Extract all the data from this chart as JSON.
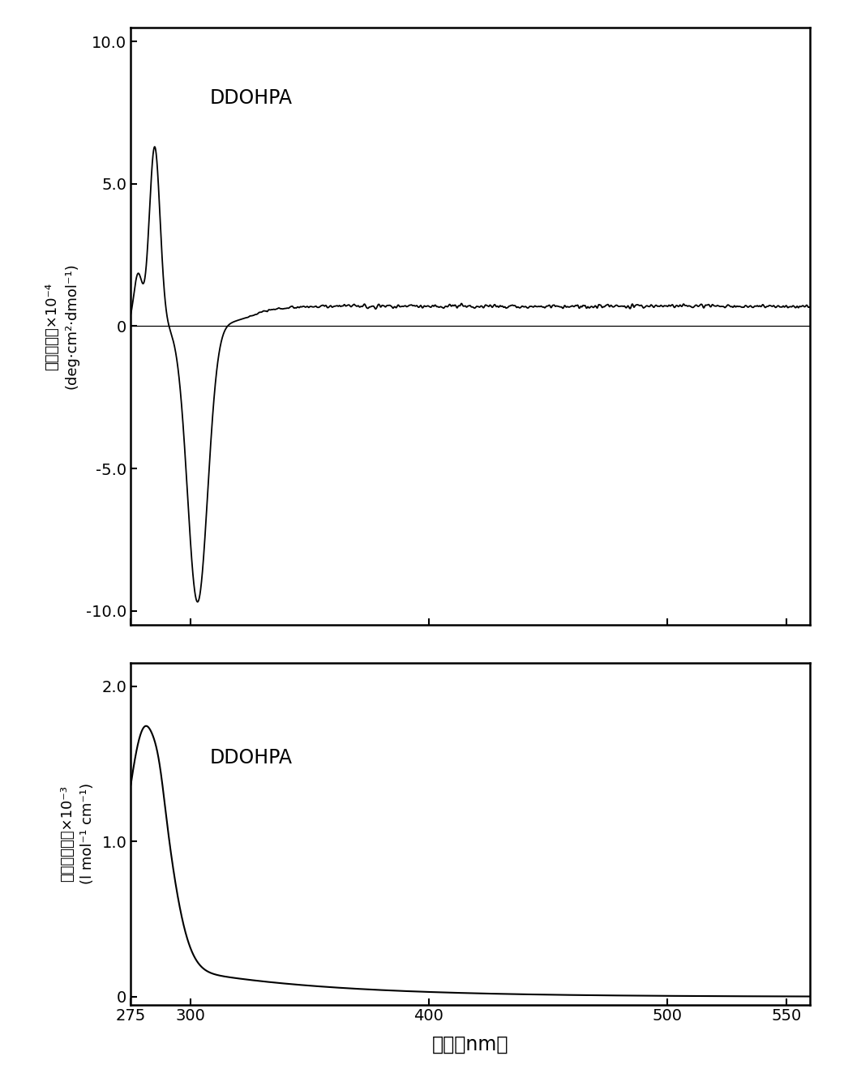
{
  "cd_label_line1": "摩尔椿圆率×10⁻⁴",
  "cd_label_line2": "(deg·cm²·dmol⁻¹)",
  "uv_label_line1": "摩尔吸光系数×10⁻³",
  "uv_label_line2": "(l mol⁻¹ cm⁻¹)",
  "xlabel": "波长［nm］",
  "cd_yticks": [
    -10.0,
    -5.0,
    0,
    5.0,
    10.0
  ],
  "cd_ytick_labels": [
    "-10.0",
    "-5.0",
    "0",
    "5.0",
    "10.0"
  ],
  "uv_yticks": [
    0,
    1.0,
    2.0
  ],
  "uv_ytick_labels": [
    "0",
    "1.0",
    "2.0"
  ],
  "xticks": [
    275,
    300,
    400,
    500,
    550
  ],
  "xlim": [
    275,
    560
  ],
  "cd_ylim": [
    -10.5,
    10.5
  ],
  "uv_ylim": [
    -0.05,
    2.15
  ],
  "label_ddohpa_cd": "DDOHPA",
  "label_ddohpa_uv": "DDOHPA",
  "line_color": "#000000",
  "background_color": "#ffffff",
  "fig_facecolor": "#ffffff"
}
